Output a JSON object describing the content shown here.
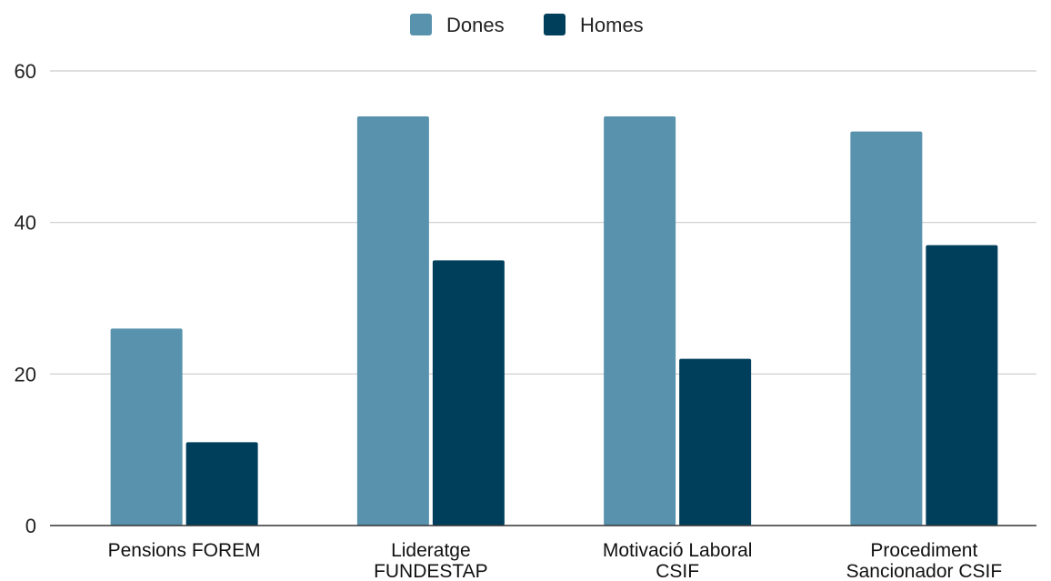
{
  "chart_data": {
    "type": "bar",
    "title": "",
    "xlabel": "",
    "ylabel": "",
    "categories": [
      [
        "Pensions FOREM"
      ],
      [
        "Lideratge",
        "FUNDESTAP"
      ],
      [
        "Motivació Laboral",
        "CSIF"
      ],
      [
        "Procediment",
        "Sancionador CSIF"
      ]
    ],
    "series": [
      {
        "name": "Dones",
        "color": "#5892ad",
        "values": [
          26,
          54,
          54,
          52
        ]
      },
      {
        "name": "Homes",
        "color": "#003f5c",
        "values": [
          11,
          35,
          22,
          37
        ]
      }
    ],
    "ylim": [
      0,
      60
    ],
    "yticks": [
      0,
      20,
      40,
      60
    ],
    "grid": true,
    "legend_position": "top-center"
  }
}
